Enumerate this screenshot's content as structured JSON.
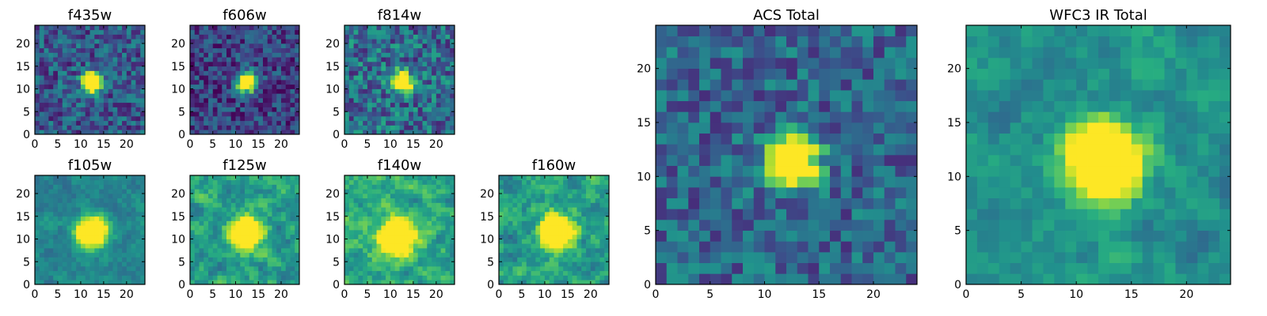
{
  "chart_data": [
    {
      "type": "heatmap",
      "title": "f435w",
      "colormap": "viridis",
      "source_pixels": 24,
      "tick_values_x": [
        0,
        5,
        10,
        15,
        20
      ],
      "tick_values_y": [
        0,
        5,
        10,
        15,
        20
      ],
      "xlim": [
        0,
        24
      ],
      "ylim": [
        0,
        24
      ],
      "hot_spot": [
        12,
        11
      ],
      "spot_radius": 1.5,
      "background_level": 0.28,
      "noise_level": 0.22,
      "smooth_level": 0
    },
    {
      "type": "heatmap",
      "title": "f606w",
      "colormap": "viridis",
      "source_pixels": 24,
      "tick_values_x": [
        0,
        5,
        10,
        15,
        20
      ],
      "tick_values_y": [
        0,
        5,
        10,
        15,
        20
      ],
      "xlim": [
        0,
        24
      ],
      "ylim": [
        0,
        24
      ],
      "hot_spot": [
        12,
        11
      ],
      "spot_radius": 1.5,
      "background_level": 0.2,
      "noise_level": 0.2,
      "smooth_level": 0
    },
    {
      "type": "heatmap",
      "title": "f814w",
      "colormap": "viridis",
      "source_pixels": 24,
      "tick_values_x": [
        0,
        5,
        10,
        15,
        20
      ],
      "tick_values_y": [
        0,
        5,
        10,
        15,
        20
      ],
      "xlim": [
        0,
        24
      ],
      "ylim": [
        0,
        24
      ],
      "hot_spot": [
        12,
        11
      ],
      "spot_radius": 1.5,
      "background_level": 0.36,
      "noise_level": 0.26,
      "smooth_level": 0
    },
    {
      "type": "heatmap",
      "title": "f105w",
      "colormap": "viridis",
      "source_pixels": 24,
      "tick_values_x": [
        0,
        5,
        10,
        15,
        20
      ],
      "tick_values_y": [
        0,
        5,
        10,
        15,
        20
      ],
      "xlim": [
        0,
        24
      ],
      "ylim": [
        0,
        24
      ],
      "hot_spot": [
        12,
        11
      ],
      "spot_radius": 2.2,
      "background_level": 0.46,
      "noise_level": 0.2,
      "smooth_level": 1
    },
    {
      "type": "heatmap",
      "title": "f125w",
      "colormap": "viridis",
      "source_pixels": 24,
      "tick_values_x": [
        0,
        5,
        10,
        15,
        20
      ],
      "tick_values_y": [
        0,
        5,
        10,
        15,
        20
      ],
      "xlim": [
        0,
        24
      ],
      "ylim": [
        0,
        24
      ],
      "hot_spot": [
        12,
        11
      ],
      "spot_radius": 2.2,
      "background_level": 0.56,
      "noise_level": 0.32,
      "smooth_level": 1
    },
    {
      "type": "heatmap",
      "title": "f140w",
      "colormap": "viridis",
      "source_pixels": 24,
      "tick_values_x": [
        0,
        5,
        10,
        15,
        20
      ],
      "tick_values_y": [
        0,
        5,
        10,
        15,
        20
      ],
      "xlim": [
        0,
        24
      ],
      "ylim": [
        0,
        24
      ],
      "hot_spot": [
        11,
        10
      ],
      "spot_radius": 2.6,
      "background_level": 0.6,
      "noise_level": 0.3,
      "smooth_level": 1
    },
    {
      "type": "heatmap",
      "title": "f160w",
      "colormap": "viridis",
      "source_pixels": 24,
      "tick_values_x": [
        0,
        5,
        10,
        15,
        20
      ],
      "tick_values_y": [
        0,
        5,
        10,
        15,
        20
      ],
      "xlim": [
        0,
        24
      ],
      "ylim": [
        0,
        24
      ],
      "hot_spot": [
        12,
        11
      ],
      "spot_radius": 2.4,
      "background_level": 0.55,
      "noise_level": 0.32,
      "smooth_level": 1
    },
    {
      "type": "heatmap",
      "title": "ACS Total",
      "colormap": "viridis",
      "source_pixels": 24,
      "tick_values_x": [
        0,
        5,
        10,
        15,
        20
      ],
      "tick_values_y": [
        0,
        5,
        10,
        15,
        20
      ],
      "xlim": [
        0,
        24
      ],
      "ylim": [
        0,
        24
      ],
      "hot_spot": [
        12,
        11
      ],
      "spot_radius": 1.6,
      "background_level": 0.33,
      "noise_level": 0.2,
      "smooth_level": 0
    },
    {
      "type": "heatmap",
      "title": "WFC3 IR Total",
      "colormap": "viridis",
      "source_pixels": 24,
      "tick_values_x": [
        0,
        5,
        10,
        15,
        20
      ],
      "tick_values_y": [
        0,
        5,
        10,
        15,
        20
      ],
      "xlim": [
        0,
        24
      ],
      "ylim": [
        0,
        24
      ],
      "hot_spot": [
        12,
        11
      ],
      "spot_radius": 2.3,
      "background_level": 0.5,
      "noise_level": 0.22,
      "smooth_level": 1
    }
  ],
  "colors": {
    "viridis_stops": [
      "#440154",
      "#472c7a",
      "#3b518b",
      "#2c718e",
      "#21908d",
      "#27ad81",
      "#5cc863",
      "#aadc32",
      "#fde725"
    ],
    "axes_frame": "#000000",
    "background": "#ffffff"
  }
}
